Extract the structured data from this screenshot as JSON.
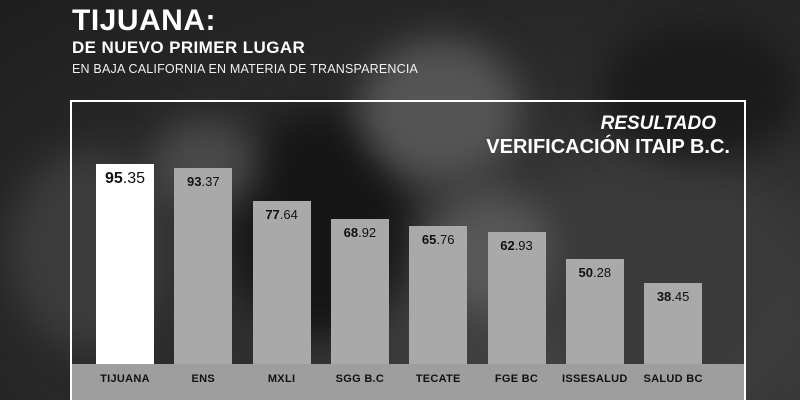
{
  "header": {
    "title": "TIJUANA:",
    "subtitle": "DE NUEVO PRIMER LUGAR",
    "description": "EN BAJA CALIFORNIA EN MATERIA DE TRANSPARENCIA"
  },
  "panel": {
    "result_label": "RESULTADO",
    "result_title": "VERIFICACIÓN ITAIP B.C."
  },
  "colors": {
    "highlight_bar": "#ffffff",
    "bar": "#a9a9a9",
    "axis_band": "#9e9e9e"
  },
  "chart_data": {
    "type": "bar",
    "title": "",
    "xlabel": "",
    "ylabel": "",
    "categories": [
      "TIJUANA",
      "ENS",
      "MXLI",
      "SGG B.C",
      "TECATE",
      "FGE BC",
      "ISSESALUD",
      "SALUD BC"
    ],
    "values": [
      95.35,
      93.37,
      77.64,
      68.92,
      65.76,
      62.93,
      50.28,
      38.45
    ],
    "value_labels": [
      {
        "int": "95",
        "dec": ".35"
      },
      {
        "int": "93",
        "dec": ".37"
      },
      {
        "int": "77",
        "dec": ".64"
      },
      {
        "int": "68",
        "dec": ".92"
      },
      {
        "int": "65",
        "dec": ".76"
      },
      {
        "int": "62",
        "dec": ".93"
      },
      {
        "int": "50",
        "dec": ".28"
      },
      {
        "int": "38",
        "dec": ".45"
      }
    ],
    "highlight_index": 0,
    "grid": false,
    "legend": "none"
  }
}
